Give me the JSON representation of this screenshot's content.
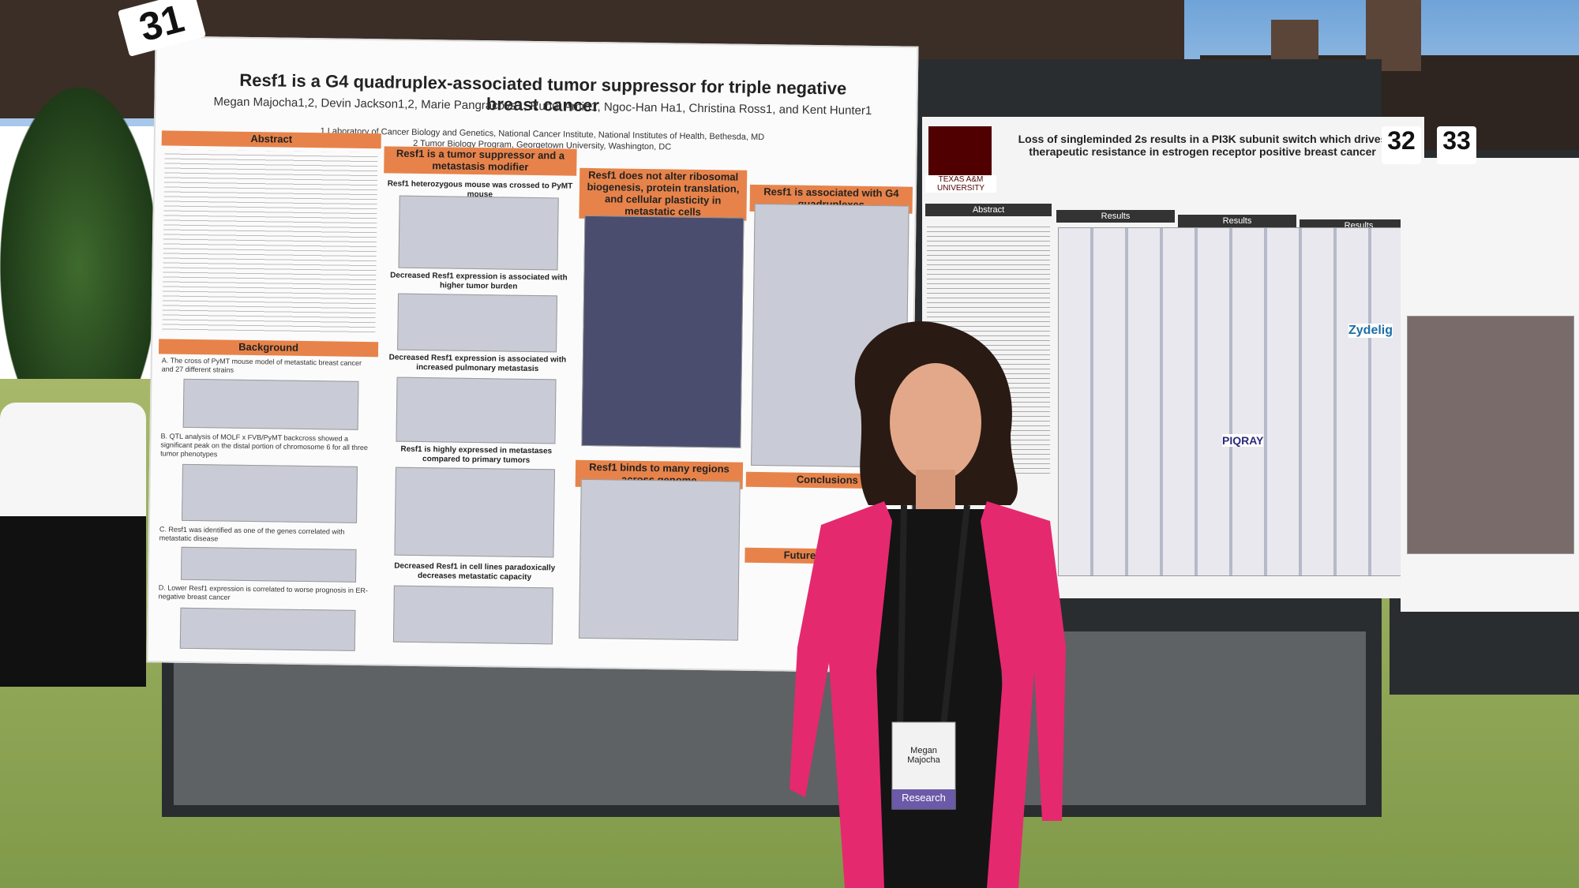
{
  "tags": [
    "31",
    "32",
    "33"
  ],
  "poster_left": {
    "title": "Resf1 is a G4 quadruplex-associated tumor suppressor for triple negative breast cancer",
    "authors": "Megan Majocha1,2, Devin Jackson1,2, Marie Pangracova1, Ruhul Amin1, Ngoc-Han Ha1, Christina Ross1, and Kent Hunter1",
    "affiliations": [
      "1 Laboratory of Cancer Biology and Genetics, National Cancer Institute, National Institutes of Health, Bethesda, MD",
      "2 Tumor Biology Program, Georgetown University, Washington, DC"
    ],
    "sections": [
      "Abstract",
      "Background",
      "Resf1 is a tumor suppressor and a metastasis modifier",
      "Resf1 does not alter ribosomal biogenesis, protein translation, and cellular plasticity in metastatic cells",
      "Resf1 is associated with G4 quadruplexes",
      "Resf1 binds to many regions across genome",
      "Conclusions",
      "Future Directions"
    ],
    "background": [
      "A. The cross of PyMT mouse model of metastatic breast cancer and 27 different strains",
      "B. QTL analysis of MOLF x FVB/PyMT backcross showed a significant peak on the distal portion of chromosome 6 for all three tumor phenotypes",
      "C. Resf1 was identified as one of the genes correlated with metastatic disease",
      "D. Lower Resf1 expression is correlated to worse prognosis in ER-negative breast cancer"
    ],
    "subheads": [
      "Resf1 heterozygous mouse was crossed to PyMT mouse",
      "Decreased Resf1 expression is associated with higher tumor burden",
      "Decreased Resf1 expression is associated with increased pulmonary metastasis",
      "Resf1 is highly expressed in metastases compared to primary tumors",
      "Decreased Resf1 in cell lines paradoxically decreases metastatic capacity"
    ]
  },
  "poster_center": {
    "university": "TEXAS A&M UNIVERSITY",
    "title": "Loss of singleminded 2s results in a PI3K subunit switch which drives therapeutic resistance in estrogen receptor positive breast cancer",
    "sections": [
      "Abstract",
      "Results",
      "Results",
      "Results"
    ],
    "brands": [
      "Zydelig",
      "PIQRAY"
    ]
  },
  "badge": {
    "name": "Megan Majocha",
    "ribbon": "Research"
  }
}
